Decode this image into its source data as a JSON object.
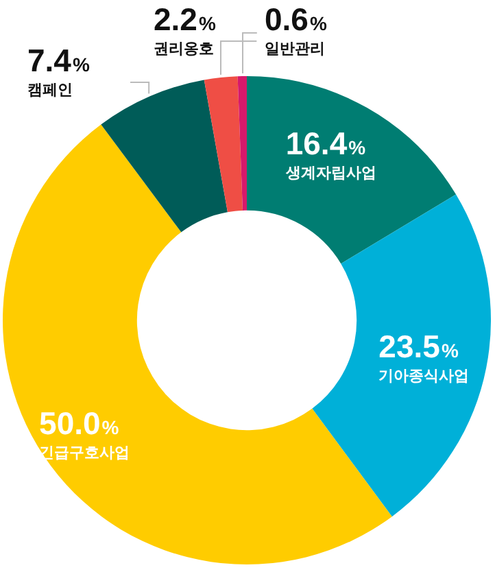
{
  "chart_data": {
    "type": "donut",
    "categories": [
      "생계자립사업",
      "기아종식사업",
      "긴급구호사업",
      "캠페인",
      "권리옹호",
      "일반관리"
    ],
    "values": [
      16.4,
      23.5,
      50.0,
      7.4,
      2.2,
      0.6
    ],
    "colors": [
      "#007d72",
      "#00b0d8",
      "#ffcc00",
      "#005c58",
      "#ef4e45",
      "#d6196b"
    ],
    "value_labels": [
      "16.4%",
      "23.5%",
      "50.0%",
      "7.4%",
      "2.2%",
      "0.6%"
    ],
    "legend": false
  }
}
